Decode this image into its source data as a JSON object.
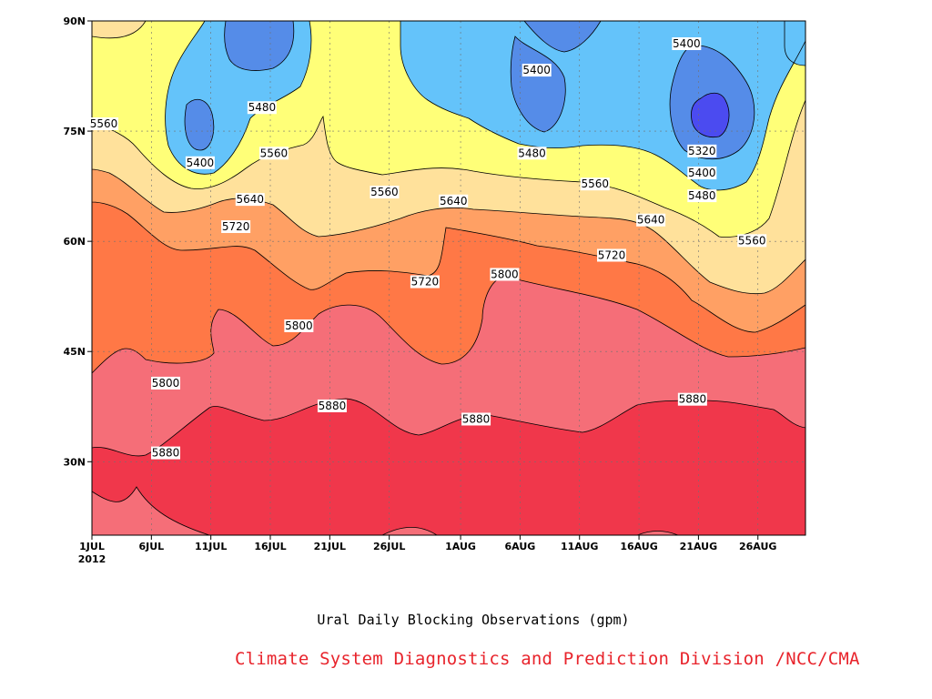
{
  "chart_data": {
    "type": "contour",
    "title": "Ural Daily Blocking Observations (gpm)",
    "x_ticks": [
      "1JUL",
      "6JUL",
      "11JUL",
      "16JUL",
      "21JUL",
      "26JUL",
      "1AUG",
      "6AUG",
      "11AUG",
      "16AUG",
      "21AUG",
      "26AUG"
    ],
    "x_year": "2012",
    "x_range_days": [
      0,
      60
    ],
    "y_ticks": [
      "30N",
      "45N",
      "60N",
      "75N",
      "90N"
    ],
    "y_range_lat": [
      20,
      90
    ],
    "grid": true,
    "contour_interval": 80,
    "levels": [
      5320,
      5400,
      5480,
      5560,
      5640,
      5720,
      5800,
      5880
    ],
    "colors": {
      "lt5320": "#4B4BF0",
      "5320_5400": "#558CE8",
      "5400_5480": "#64C3FA",
      "5480_5560": "#FFFF78",
      "5560_5640": "#FFE19B",
      "5640_5720": "#FFA064",
      "5720_5800": "#FF7846",
      "5800_5880": "#F56E78",
      "gt5880": "#F0374B"
    },
    "contour_labels": [
      {
        "text": "5560",
        "day": 1.0,
        "lat": 76.0
      },
      {
        "text": "5400",
        "day": 9.1,
        "lat": 70.7
      },
      {
        "text": "5480",
        "day": 14.3,
        "lat": 78.2
      },
      {
        "text": "5560",
        "day": 15.3,
        "lat": 72.0
      },
      {
        "text": "5640",
        "day": 13.3,
        "lat": 65.7
      },
      {
        "text": "5720",
        "day": 12.1,
        "lat": 62.0
      },
      {
        "text": "5560",
        "day": 24.6,
        "lat": 66.7
      },
      {
        "text": "5640",
        "day": 30.4,
        "lat": 65.5
      },
      {
        "text": "5720",
        "day": 28.0,
        "lat": 54.5
      },
      {
        "text": "5800",
        "day": 17.4,
        "lat": 48.5
      },
      {
        "text": "5800",
        "day": 6.2,
        "lat": 40.7
      },
      {
        "text": "5880",
        "day": 6.2,
        "lat": 31.2
      },
      {
        "text": "5880",
        "day": 20.2,
        "lat": 37.6
      },
      {
        "text": "5880",
        "day": 32.3,
        "lat": 35.8
      },
      {
        "text": "5800",
        "day": 34.7,
        "lat": 55.5
      },
      {
        "text": "5400",
        "day": 37.4,
        "lat": 83.3
      },
      {
        "text": "5480",
        "day": 37.0,
        "lat": 72.0
      },
      {
        "text": "5560",
        "day": 42.3,
        "lat": 67.8
      },
      {
        "text": "5720",
        "day": 43.7,
        "lat": 58.1
      },
      {
        "text": "5640",
        "day": 47.0,
        "lat": 62.9
      },
      {
        "text": "5400",
        "day": 50.0,
        "lat": 86.9
      },
      {
        "text": "5320",
        "day": 51.3,
        "lat": 72.3
      },
      {
        "text": "5400",
        "day": 51.3,
        "lat": 69.3
      },
      {
        "text": "5480",
        "day": 51.3,
        "lat": 66.2
      },
      {
        "text": "5560",
        "day": 55.5,
        "lat": 60.1
      },
      {
        "text": "5880",
        "day": 50.5,
        "lat": 38.5
      }
    ]
  },
  "caption": "Ural Daily Blocking Observations (gpm)",
  "credit": "Climate System Diagnostics and Prediction Division /NCC/CMA"
}
